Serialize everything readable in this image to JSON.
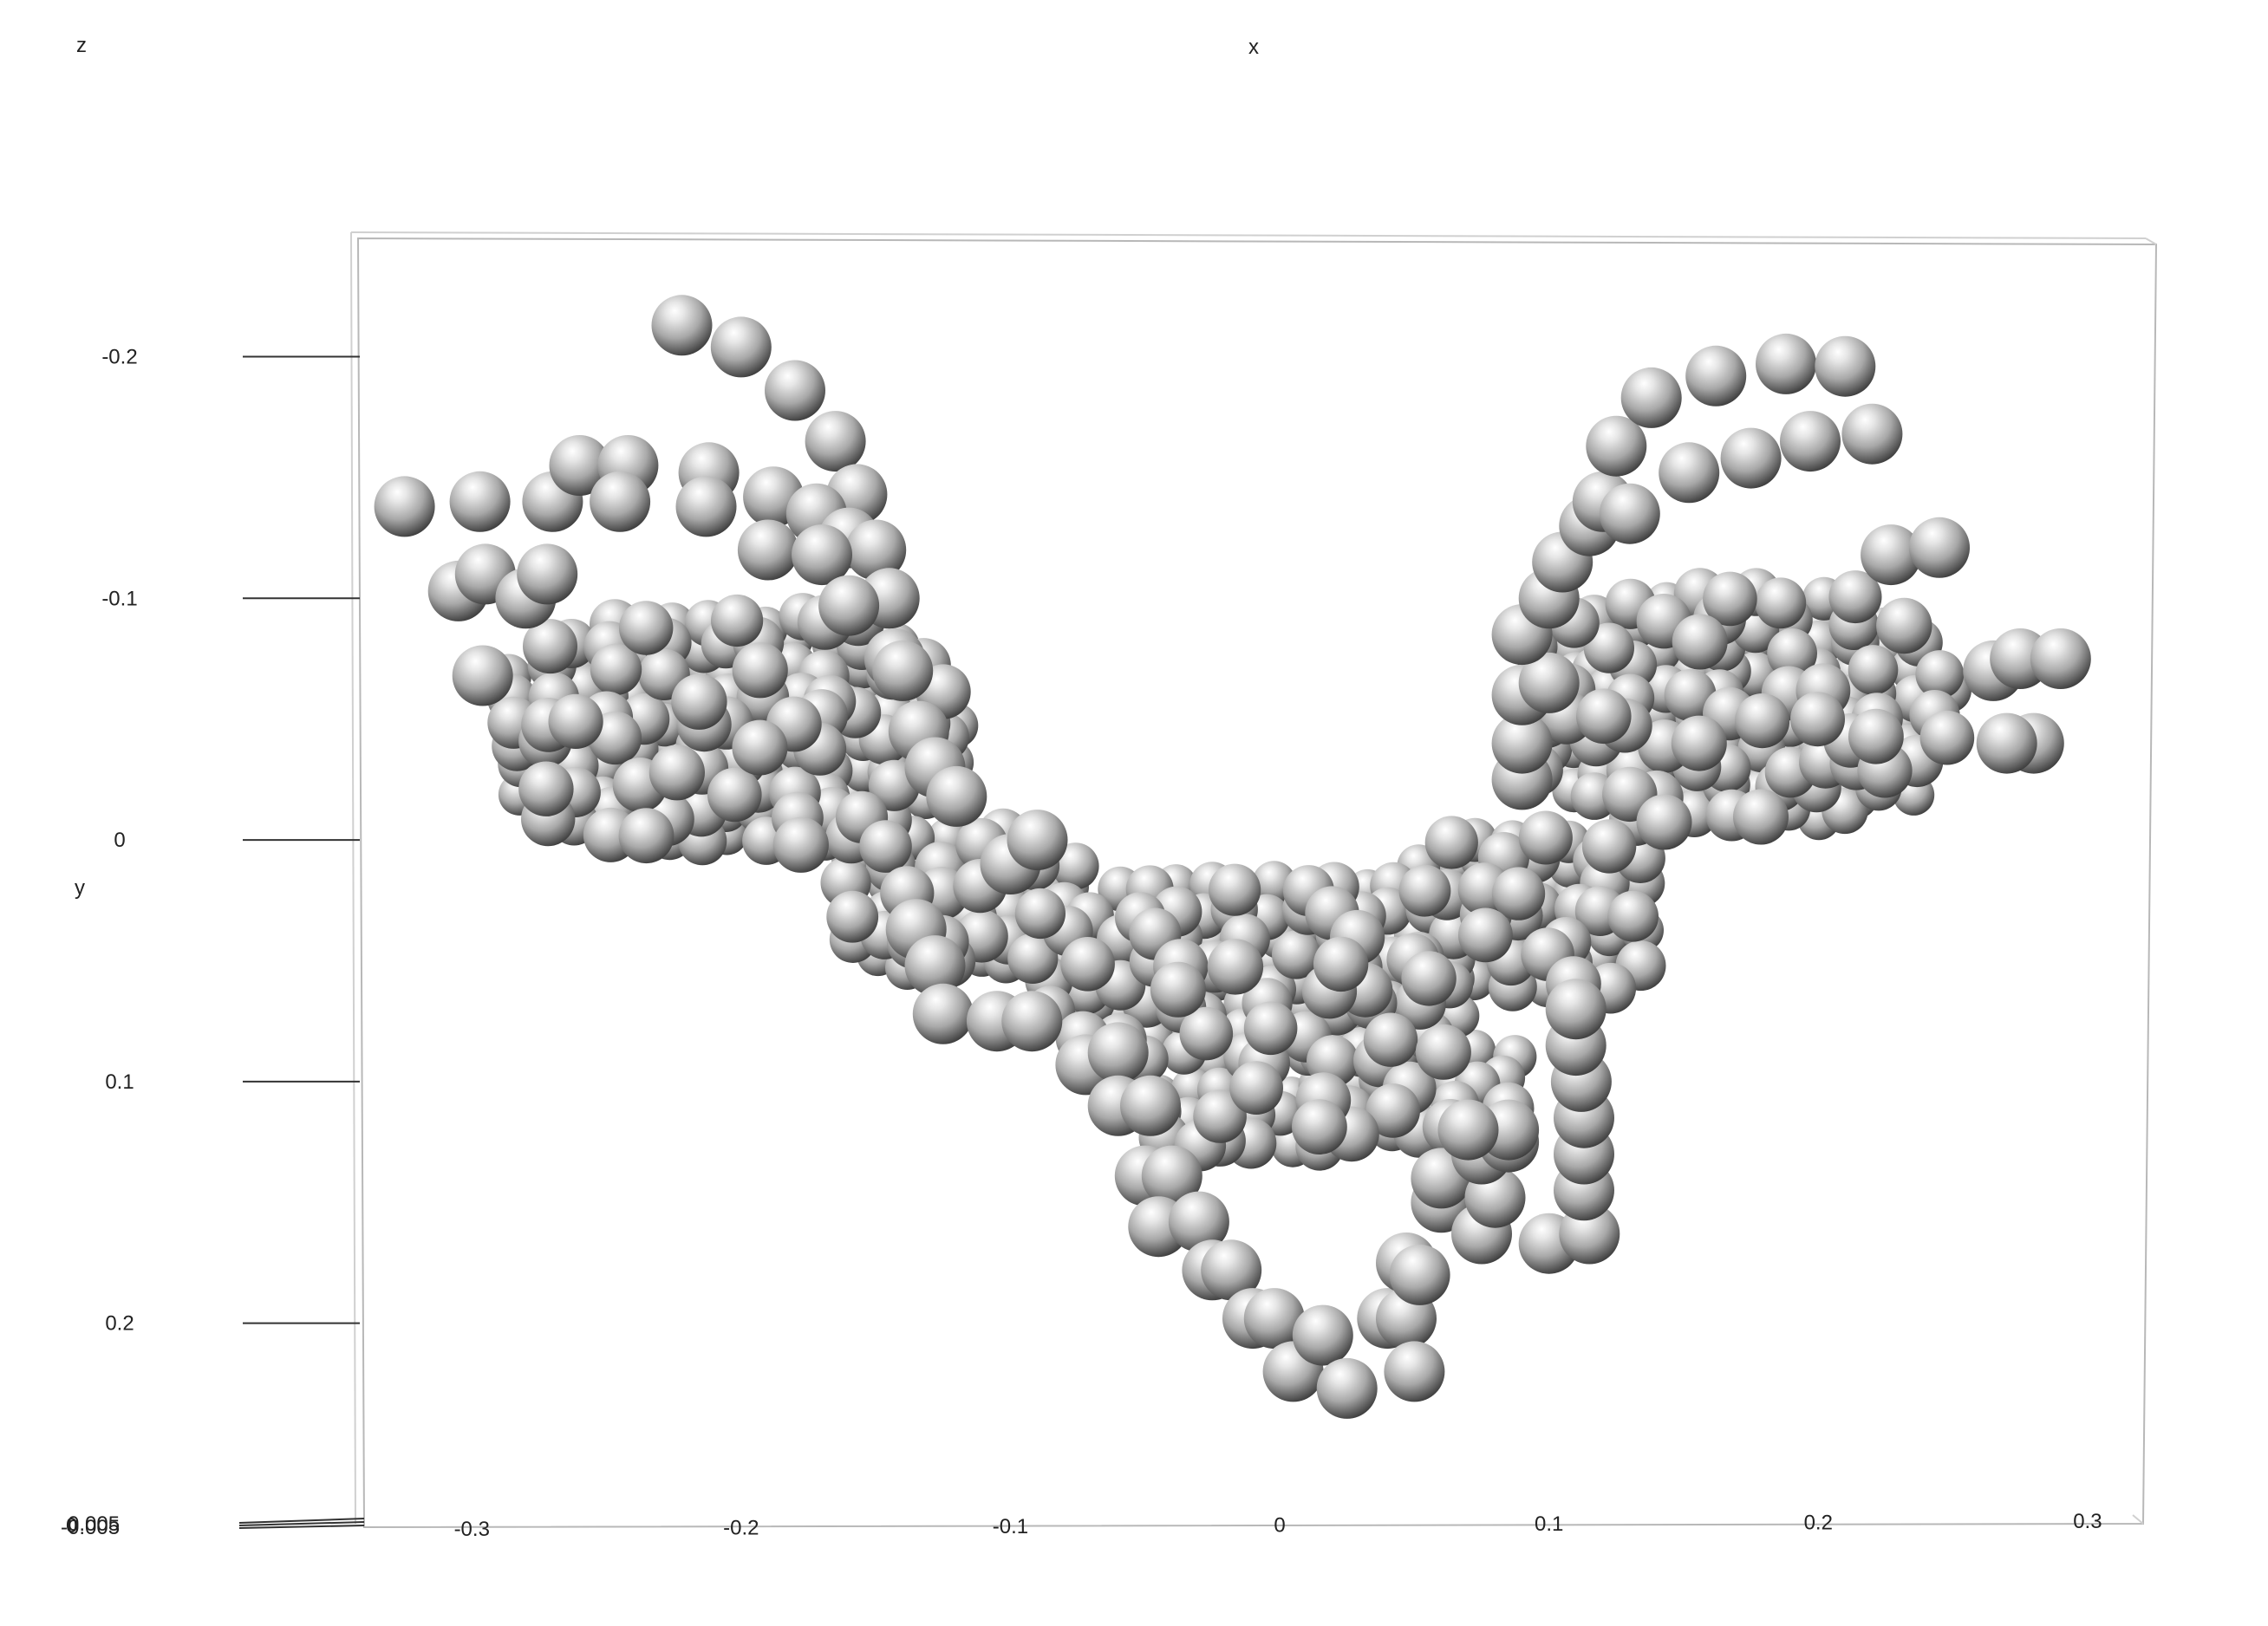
{
  "chart_data": {
    "type": "scatter",
    "render": "3d-spheres",
    "axes": {
      "x": "x",
      "y": "y",
      "z": "z"
    },
    "xlim": [
      -0.34,
      0.32
    ],
    "ylim": [
      -0.24,
      0.255
    ],
    "x_ticks": [
      -0.3,
      -0.2,
      -0.1,
      0,
      0.1,
      0.2,
      0.3
    ],
    "x_tick_labels": [
      "-0.3",
      "-0.2",
      "-0.1",
      "0",
      "0.1",
      "0.2",
      "0.3"
    ],
    "y_ticks": [
      -0.2,
      -0.1,
      0,
      0.1,
      0.2
    ],
    "y_tick_labels": [
      "-0.2",
      "-0.1",
      "0",
      "0.1",
      "0.2"
    ],
    "z_tick_labels": [
      "-0.005",
      "0",
      "0.005"
    ],
    "grid": false,
    "colors": {
      "sphere_light": "#ffffff",
      "sphere_mid": "#a8a8a8",
      "sphere_dark": "#3e3e3e",
      "box_line": "#b8b8b8",
      "tick_line": "#333333"
    },
    "groups": [
      {
        "kind": "blob",
        "center": [
          -0.205,
          -0.045
        ],
        "radius": [
          0.09,
          0.055
        ],
        "spacing": 0.0115
      },
      {
        "kind": "blob",
        "center": [
          -0.12,
          0.025
        ],
        "radius": [
          0.05,
          0.035
        ],
        "spacing": 0.0115
      },
      {
        "kind": "blob",
        "center": [
          -0.01,
          0.055
        ],
        "radius": [
          0.085,
          0.045
        ],
        "spacing": 0.0115
      },
      {
        "kind": "blob",
        "center": [
          0.09,
          0.03
        ],
        "radius": [
          0.05,
          0.04
        ],
        "spacing": 0.0115
      },
      {
        "kind": "blob",
        "center": [
          0.17,
          -0.055
        ],
        "radius": [
          0.085,
          0.055
        ],
        "spacing": 0.0115
      },
      {
        "kind": "blob",
        "center": [
          0.05,
          0.105
        ],
        "radius": [
          0.045,
          0.025
        ],
        "spacing": 0.0115
      },
      {
        "kind": "blob",
        "center": [
          -0.01,
          0.115
        ],
        "radius": [
          0.045,
          0.02
        ],
        "spacing": 0.0115
      },
      {
        "kind": "points",
        "coords": [
          [
            -0.325,
            -0.138
          ],
          [
            -0.297,
            -0.14
          ],
          [
            -0.27,
            -0.14
          ],
          [
            -0.26,
            -0.155
          ],
          [
            -0.242,
            -0.155
          ],
          [
            -0.245,
            -0.14
          ],
          [
            -0.212,
            -0.152
          ],
          [
            -0.213,
            -0.138
          ],
          [
            -0.188,
            -0.142
          ],
          [
            -0.222,
            -0.213
          ],
          [
            -0.2,
            -0.204
          ],
          [
            -0.18,
            -0.186
          ],
          [
            -0.165,
            -0.165
          ],
          [
            -0.157,
            -0.143
          ],
          [
            -0.172,
            -0.135
          ],
          [
            -0.16,
            -0.125
          ],
          [
            -0.15,
            -0.12
          ],
          [
            -0.145,
            -0.1
          ],
          [
            -0.143,
            -0.075
          ],
          [
            -0.14,
            -0.07
          ],
          [
            -0.134,
            -0.045
          ],
          [
            -0.128,
            -0.03
          ],
          [
            -0.12,
            -0.018
          ],
          [
            -0.1,
            0.01
          ],
          [
            -0.09,
            0.0
          ],
          [
            -0.19,
            -0.12
          ],
          [
            -0.17,
            -0.118
          ],
          [
            -0.16,
            -0.097
          ],
          [
            -0.305,
            -0.103
          ],
          [
            -0.295,
            -0.11
          ],
          [
            -0.28,
            -0.1
          ],
          [
            -0.272,
            -0.11
          ],
          [
            -0.296,
            -0.068
          ],
          [
            -0.135,
            0.037
          ],
          [
            -0.128,
            0.052
          ],
          [
            -0.125,
            0.072
          ],
          [
            -0.105,
            0.075
          ],
          [
            -0.092,
            0.075
          ],
          [
            -0.072,
            0.093
          ],
          [
            -0.06,
            0.088
          ],
          [
            -0.06,
            0.11
          ],
          [
            -0.048,
            0.11
          ],
          [
            -0.05,
            0.139
          ],
          [
            -0.04,
            0.139
          ],
          [
            -0.045,
            0.16
          ],
          [
            -0.03,
            0.158
          ],
          [
            -0.025,
            0.178
          ],
          [
            -0.018,
            0.178
          ],
          [
            -0.01,
            0.198
          ],
          [
            -0.002,
            0.198
          ],
          [
            0.005,
            0.22
          ],
          [
            0.016,
            0.205
          ],
          [
            0.025,
            0.227
          ],
          [
            0.04,
            0.198
          ],
          [
            0.047,
            0.198
          ],
          [
            0.05,
            0.22
          ],
          [
            0.047,
            0.175
          ],
          [
            0.052,
            0.18
          ],
          [
            0.06,
            0.15
          ],
          [
            0.06,
            0.14
          ],
          [
            0.075,
            0.163
          ],
          [
            0.08,
            0.148
          ],
          [
            0.075,
            0.13
          ],
          [
            0.085,
            0.125
          ],
          [
            0.1,
            0.167
          ],
          [
            0.115,
            0.163
          ],
          [
            0.113,
            0.145
          ],
          [
            0.113,
            0.13
          ],
          [
            0.113,
            0.115
          ],
          [
            0.112,
            0.1
          ],
          [
            0.11,
            0.085
          ],
          [
            0.11,
            0.07
          ],
          [
            0.085,
            0.12
          ],
          [
            0.07,
            0.12
          ],
          [
            0.09,
            -0.025
          ],
          [
            0.09,
            -0.04
          ],
          [
            0.09,
            -0.06
          ],
          [
            0.1,
            -0.065
          ],
          [
            0.09,
            -0.085
          ],
          [
            0.1,
            -0.1
          ],
          [
            0.105,
            -0.115
          ],
          [
            0.115,
            -0.13
          ],
          [
            0.12,
            -0.14
          ],
          [
            0.13,
            -0.135
          ],
          [
            0.125,
            -0.163
          ],
          [
            0.138,
            -0.183
          ],
          [
            0.162,
            -0.192
          ],
          [
            0.188,
            -0.197
          ],
          [
            0.21,
            -0.196
          ],
          [
            0.152,
            -0.152
          ],
          [
            0.175,
            -0.158
          ],
          [
            0.197,
            -0.165
          ],
          [
            0.22,
            -0.168
          ],
          [
            0.227,
            -0.118
          ],
          [
            0.245,
            -0.121
          ],
          [
            0.265,
            -0.07
          ],
          [
            0.275,
            -0.075
          ],
          [
            0.29,
            -0.075
          ],
          [
            0.28,
            -0.04
          ],
          [
            0.27,
            -0.04
          ]
        ]
      }
    ]
  }
}
